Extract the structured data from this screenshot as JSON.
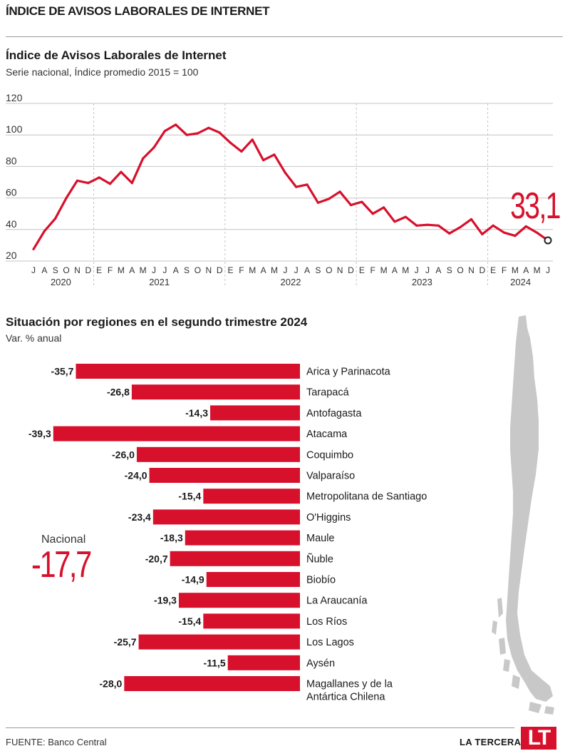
{
  "page": {
    "title": "ÍNDICE DE AVISOS LABORALES DE INTERNET",
    "source": "FUENTE: Banco Central",
    "brand": "LA TERCERA",
    "logo": "LT",
    "colors": {
      "accent": "#d7102c",
      "map": "#c8c8c8",
      "grid": "#c4c4c4"
    }
  },
  "line_chart": {
    "title": "Índice de Avisos Laborales de Internet",
    "subtitle": "Serie nacional, Índice promedio 2015 = 100",
    "last_value_label": "33,1"
  },
  "bar_chart": {
    "title": "Situación por regiones en el segundo trimestre 2024",
    "subtitle": "Var. % anual",
    "national_label": "Nacional",
    "national_value": "-17,7"
  },
  "map": {
    "icon": "chile-map-icon"
  },
  "chart_data": [
    {
      "type": "line",
      "title": "Índice de Avisos Laborales de Internet",
      "subtitle": "Serie nacional, Índice promedio 2015 = 100",
      "xlabel": "",
      "ylabel": "",
      "ylim": [
        20,
        120
      ],
      "yticks": [
        20,
        40,
        60,
        80,
        100,
        120
      ],
      "grid": true,
      "month_labels": [
        "J",
        "A",
        "S",
        "O",
        "N",
        "D",
        "E",
        "F",
        "M",
        "A",
        "M",
        "J",
        "J",
        "A",
        "S",
        "O",
        "N",
        "D",
        "E",
        "F",
        "M",
        "A",
        "M",
        "J",
        "J",
        "A",
        "S",
        "O",
        "N",
        "D",
        "E",
        "F",
        "M",
        "A",
        "M",
        "J",
        "J",
        "A",
        "S",
        "O",
        "N",
        "D",
        "E",
        "F",
        "M",
        "A",
        "M",
        "J"
      ],
      "year_labels": [
        {
          "label": "2020",
          "from": 0,
          "to": 5
        },
        {
          "label": "2021",
          "from": 6,
          "to": 17
        },
        {
          "label": "2022",
          "from": 18,
          "to": 29
        },
        {
          "label": "2023",
          "from": 30,
          "to": 41
        },
        {
          "label": "2024",
          "from": 42,
          "to": 47
        }
      ],
      "year_separators_after": [
        5,
        17,
        29,
        41
      ],
      "series": [
        {
          "values": [
            27.5,
            39,
            47,
            60,
            71,
            69.5,
            73,
            69,
            76.5,
            69.5,
            85,
            92,
            102.5,
            106.5,
            100,
            101,
            104.5,
            101.5,
            95,
            89.5,
            97,
            84,
            87.5,
            76,
            67,
            68.5,
            57,
            59.5,
            64,
            55.5,
            57.5,
            50,
            54,
            45,
            48,
            42.5,
            43,
            42.5,
            37.5,
            41.5,
            46.5,
            37,
            42.5,
            38,
            36,
            42,
            38,
            33.1
          ]
        }
      ],
      "last_point_label": "33,1"
    },
    {
      "type": "bar",
      "orientation": "horizontal",
      "title": "Situación por regiones en el segundo trimestre 2024",
      "subtitle": "Var. % anual",
      "categories": [
        "Arica y Parinacota",
        "Tarapacá",
        "Antofagasta",
        "Atacama",
        "Coquimbo",
        "Valparaíso",
        "Metropolitana de Santiago",
        "O'Higgins",
        "Maule",
        "Ñuble",
        "Biobío",
        "La Araucanía",
        "Los Ríos",
        "Los Lagos",
        "Aysén",
        "Magallanes y de la Antártica Chilena"
      ],
      "category_lines": [
        [
          "Arica y Parinacota"
        ],
        [
          "Tarapacá"
        ],
        [
          "Antofagasta"
        ],
        [
          "Atacama"
        ],
        [
          "Coquimbo"
        ],
        [
          "Valparaíso"
        ],
        [
          "Metropolitana de Santiago"
        ],
        [
          "O'Higgins"
        ],
        [
          "Maule"
        ],
        [
          "Ñuble"
        ],
        [
          "Biobío"
        ],
        [
          "La Araucanía"
        ],
        [
          "Los Ríos"
        ],
        [
          "Los Lagos"
        ],
        [
          "Aysén"
        ],
        [
          "Magallanes y de la",
          "Antártica Chilena"
        ]
      ],
      "values": [
        -35.7,
        -26.8,
        -14.3,
        -39.3,
        -26.0,
        -24.0,
        -15.4,
        -23.4,
        -18.3,
        -20.7,
        -14.9,
        -19.3,
        -15.4,
        -25.7,
        -11.5,
        -28.0
      ],
      "value_labels": [
        "-35,7",
        "-26,8",
        "-14,3",
        "-39,3",
        "-26,0",
        "-24,0",
        "-15,4",
        "-23,4",
        "-18,3",
        "-20,7",
        "-14,9",
        "-19,3",
        "-15,4",
        "-25,7",
        "-11,5",
        "-28,0"
      ],
      "national": {
        "label": "Nacional",
        "value": -17.7,
        "value_label": "-17,7"
      }
    }
  ]
}
